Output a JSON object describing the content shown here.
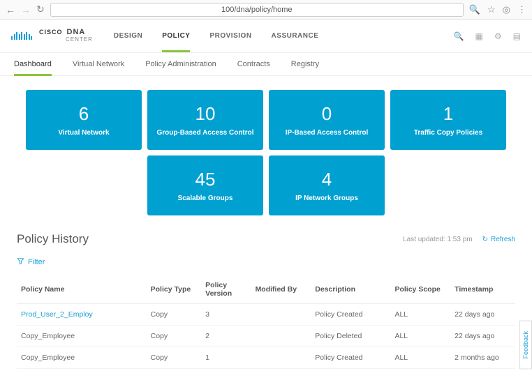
{
  "browser": {
    "url": "100/dna/policy/home"
  },
  "app": {
    "brand_top": "CISCO",
    "brand_sub1": "DNA",
    "brand_sub2": "CENTER",
    "nav": [
      {
        "label": "DESIGN",
        "active": false
      },
      {
        "label": "POLICY",
        "active": true
      },
      {
        "label": "PROVISION",
        "active": false
      },
      {
        "label": "ASSURANCE",
        "active": false
      }
    ]
  },
  "subnav": [
    {
      "label": "Dashboard",
      "active": true
    },
    {
      "label": "Virtual Network",
      "active": false
    },
    {
      "label": "Policy Administration",
      "active": false
    },
    {
      "label": "Contracts",
      "active": false
    },
    {
      "label": "Registry",
      "active": false
    }
  ],
  "tiles": [
    {
      "count": "6",
      "label": "Virtual Network"
    },
    {
      "count": "10",
      "label": "Group-Based Access Control"
    },
    {
      "count": "0",
      "label": "IP-Based Access Control"
    },
    {
      "count": "1",
      "label": "Traffic Copy Policies"
    },
    {
      "count": "45",
      "label": "Scalable Groups"
    },
    {
      "count": "4",
      "label": "IP Network Groups"
    }
  ],
  "tile_color": "#00a0d1",
  "history": {
    "title": "Policy History",
    "last_updated": "Last updated: 1:53 pm",
    "refresh_label": "Refresh",
    "filter_label": "Filter",
    "columns": [
      "Policy Name",
      "Policy Type",
      "Policy Version",
      "Modified By",
      "Description",
      "Policy Scope",
      "Timestamp"
    ],
    "rows": [
      {
        "name": "Prod_User_2_Employ",
        "link": true,
        "type": "Copy",
        "version": "3",
        "modified_by": "",
        "desc": "Policy Created",
        "scope": "ALL",
        "ts": "22 days ago"
      },
      {
        "name": "Copy_Employee",
        "link": false,
        "type": "Copy",
        "version": "2",
        "modified_by": "",
        "desc": "Policy Deleted",
        "scope": "ALL",
        "ts": "22 days ago"
      },
      {
        "name": "Copy_Employee",
        "link": false,
        "type": "Copy",
        "version": "1",
        "modified_by": "",
        "desc": "Policy Created",
        "scope": "ALL",
        "ts": "2 months ago"
      }
    ]
  },
  "feedback_label": "Feedback"
}
